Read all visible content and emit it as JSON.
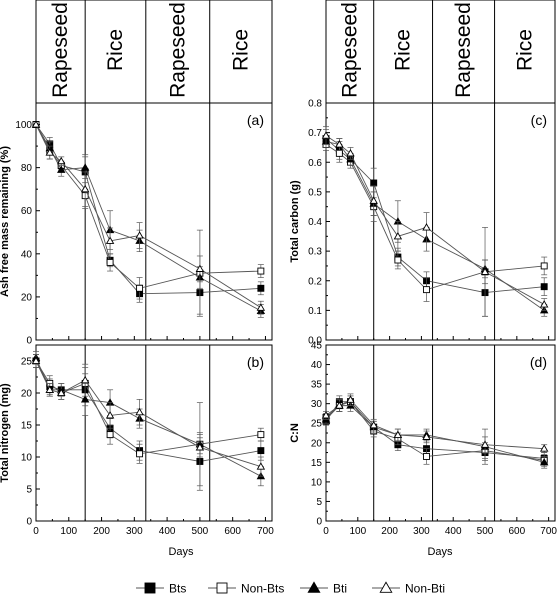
{
  "legend": [
    {
      "name": "Bts",
      "marker": "square-filled"
    },
    {
      "name": "Non-Bts",
      "marker": "square-open"
    },
    {
      "name": "Bti",
      "marker": "triangle-filled"
    },
    {
      "name": "Non-Bti",
      "marker": "triangle-open"
    }
  ],
  "crop_periods": [
    {
      "label": "Rapeseed",
      "start": 0,
      "end": 150
    },
    {
      "label": "Rice",
      "start": 150,
      "end": 335
    },
    {
      "label": "Rapeseed",
      "start": 335,
      "end": 530
    },
    {
      "label": "Rice",
      "start": 530,
      "end": 720
    }
  ],
  "xlabel": "Days",
  "chart_data": [
    {
      "type": "line",
      "panel": "(a)",
      "ylabel": "Ash free mass remaining (%)",
      "xlim": [
        0,
        720
      ],
      "ylim": [
        0,
        110
      ],
      "xticks": [
        0,
        100,
        200,
        300,
        400,
        500,
        600,
        700
      ],
      "yticks": [
        0,
        20,
        40,
        60,
        80,
        100
      ],
      "grid": false,
      "series": [
        {
          "name": "Bts",
          "x": [
            0,
            42,
            77,
            150,
            226,
            316,
            500,
            686
          ],
          "y": [
            100,
            91,
            81,
            78,
            37,
            21.5,
            22,
            24
          ],
          "err": [
            0,
            3,
            2,
            8,
            3,
            4,
            10,
            3
          ]
        },
        {
          "name": "Non-Bts",
          "x": [
            0,
            42,
            77,
            150,
            226,
            316,
            500,
            686
          ],
          "y": [
            100,
            88,
            81,
            67,
            36,
            24,
            31,
            32
          ],
          "err": [
            0,
            4,
            2,
            6,
            4,
            5,
            20,
            3
          ]
        },
        {
          "name": "Bti",
          "x": [
            0,
            42,
            77,
            150,
            226,
            316,
            500,
            686
          ],
          "y": [
            100,
            89,
            79,
            80,
            51,
            46,
            29,
            13.5
          ],
          "err": [
            0,
            3,
            3,
            5,
            9,
            5,
            5,
            3
          ]
        },
        {
          "name": "Non-Bti",
          "x": [
            0,
            42,
            77,
            150,
            226,
            316,
            500,
            686
          ],
          "y": [
            100,
            87,
            83,
            70,
            46,
            48.5,
            33,
            15
          ],
          "err": [
            0,
            3,
            2,
            8,
            6,
            6,
            6,
            3
          ]
        }
      ]
    },
    {
      "type": "line",
      "panel": "(b)",
      "ylabel": "Total nitrogen (mg)",
      "xlim": [
        0,
        720
      ],
      "ylim": [
        0,
        27.5
      ],
      "xticks": [
        0,
        100,
        200,
        300,
        400,
        500,
        600,
        700
      ],
      "yticks": [
        0,
        5,
        10,
        15,
        20,
        25
      ],
      "grid": false,
      "series": [
        {
          "name": "Bts",
          "x": [
            0,
            42,
            77,
            150,
            226,
            316,
            500,
            686
          ],
          "y": [
            25,
            21,
            20.5,
            20.5,
            14.5,
            11,
            9.3,
            11
          ],
          "err": [
            1,
            1.2,
            1,
            2.5,
            1.5,
            1.5,
            4.5,
            1.5
          ]
        },
        {
          "name": "Non-Bts",
          "x": [
            0,
            42,
            77,
            150,
            226,
            316,
            500,
            686
          ],
          "y": [
            25,
            21.5,
            20,
            21.5,
            13.5,
            10.5,
            12,
            13.5
          ],
          "err": [
            1,
            1.2,
            1,
            2.5,
            1.5,
            1.5,
            6.5,
            1
          ]
        },
        {
          "name": "Bti",
          "x": [
            0,
            42,
            77,
            150,
            226,
            316,
            500,
            686
          ],
          "y": [
            25.5,
            20.5,
            20.5,
            19,
            18.5,
            16,
            12,
            7
          ],
          "err": [
            1,
            1,
            1,
            2.5,
            2,
            1.5,
            1.5,
            1.5
          ]
        },
        {
          "name": "Non-Bti",
          "x": [
            0,
            42,
            77,
            150,
            226,
            316,
            500,
            686
          ],
          "y": [
            25,
            20.5,
            20,
            22,
            16.5,
            17,
            11.5,
            8.5
          ],
          "err": [
            1,
            1,
            1,
            2.5,
            2,
            2,
            1.5,
            1.5
          ]
        }
      ]
    },
    {
      "type": "line",
      "panel": "(c)",
      "ylabel": "Total carbon (g)",
      "xlim": [
        0,
        720
      ],
      "ylim": [
        0,
        0.8
      ],
      "xticks": [
        0,
        100,
        200,
        300,
        400,
        500,
        600,
        700
      ],
      "yticks": [
        0.0,
        0.1,
        0.2,
        0.3,
        0.4,
        0.5,
        0.6,
        0.7,
        0.8
      ],
      "grid": false,
      "series": [
        {
          "name": "Bts",
          "x": [
            0,
            42,
            77,
            150,
            226,
            316,
            500,
            686
          ],
          "y": [
            0.68,
            0.64,
            0.61,
            0.53,
            0.28,
            0.2,
            0.16,
            0.18
          ],
          "err": [
            0.03,
            0.03,
            0.02,
            0.05,
            0.03,
            0.03,
            0.08,
            0.03
          ]
        },
        {
          "name": "Non-Bts",
          "x": [
            0,
            42,
            77,
            150,
            226,
            316,
            500,
            686
          ],
          "y": [
            0.66,
            0.63,
            0.6,
            0.45,
            0.27,
            0.17,
            0.23,
            0.25
          ],
          "err": [
            0.02,
            0.03,
            0.02,
            0.05,
            0.03,
            0.04,
            0.15,
            0.03
          ]
        },
        {
          "name": "Bti",
          "x": [
            0,
            42,
            77,
            150,
            226,
            316,
            500,
            686
          ],
          "y": [
            0.67,
            0.66,
            0.61,
            0.46,
            0.4,
            0.34,
            0.24,
            0.1
          ],
          "err": [
            0.02,
            0.02,
            0.02,
            0.04,
            0.07,
            0.04,
            0.03,
            0.02
          ]
        },
        {
          "name": "Non-Bti",
          "x": [
            0,
            42,
            77,
            150,
            226,
            316,
            500,
            686
          ],
          "y": [
            0.69,
            0.66,
            0.63,
            0.47,
            0.35,
            0.38,
            0.23,
            0.12
          ],
          "err": [
            0.03,
            0.02,
            0.02,
            0.05,
            0.05,
            0.05,
            0.04,
            0.02
          ]
        }
      ]
    },
    {
      "type": "line",
      "panel": "(d)",
      "ylabel": "C:N",
      "xlim": [
        0,
        720
      ],
      "ylim": [
        0,
        45
      ],
      "xticks": [
        0,
        100,
        200,
        300,
        400,
        500,
        600,
        700
      ],
      "yticks": [
        0,
        5,
        10,
        15,
        20,
        25,
        30,
        35,
        40,
        45
      ],
      "grid": false,
      "series": [
        {
          "name": "Bts",
          "x": [
            0,
            42,
            77,
            150,
            226,
            316,
            500,
            686
          ],
          "y": [
            25.5,
            30.5,
            30.5,
            24,
            19.5,
            18.5,
            17.5,
            16
          ],
          "err": [
            1,
            1.5,
            1.5,
            1.5,
            1.5,
            2,
            2,
            1.5
          ]
        },
        {
          "name": "Non-Bts",
          "x": [
            0,
            42,
            77,
            150,
            226,
            316,
            500,
            686
          ],
          "y": [
            26.5,
            29.5,
            30.5,
            23,
            21,
            16.5,
            18,
            15.5
          ],
          "err": [
            1,
            1.5,
            1.5,
            1.5,
            1.5,
            2,
            2,
            1.5
          ]
        },
        {
          "name": "Bti",
          "x": [
            0,
            42,
            77,
            150,
            226,
            316,
            500,
            686
          ],
          "y": [
            26,
            29.5,
            29.5,
            24,
            22,
            22,
            19,
            15
          ],
          "err": [
            1,
            1.5,
            1.5,
            1.5,
            1.5,
            1.5,
            4.5,
            1.5
          ]
        },
        {
          "name": "Non-Bti",
          "x": [
            0,
            42,
            77,
            150,
            226,
            316,
            500,
            686
          ],
          "y": [
            27,
            29.5,
            31,
            24.5,
            22,
            21.5,
            19.5,
            18.5
          ],
          "err": [
            1,
            1.5,
            1.5,
            1.5,
            1.5,
            1.5,
            2,
            1
          ]
        }
      ]
    }
  ]
}
